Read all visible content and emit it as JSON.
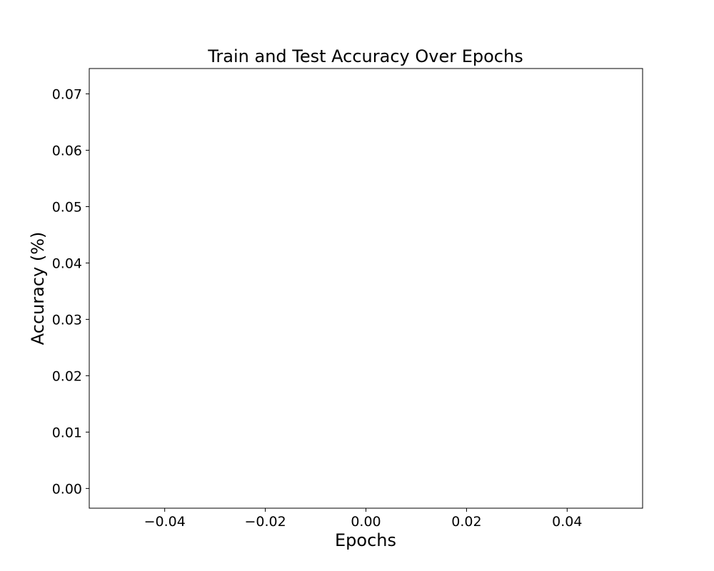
{
  "chart_data": {
    "type": "line",
    "title": "Train and Test Accuracy Over Epochs",
    "xlabel": "Epochs",
    "ylabel": "Accuracy (%)",
    "xlim": [
      -0.055,
      0.055
    ],
    "ylim": [
      -0.0035,
      0.0745
    ],
    "x_ticks": [
      -0.04,
      -0.02,
      0.0,
      0.02,
      0.04
    ],
    "x_tick_labels": [
      "−0.04",
      "−0.02",
      "0.00",
      "0.02",
      "0.04"
    ],
    "y_ticks": [
      0.0,
      0.01,
      0.02,
      0.03,
      0.04,
      0.05,
      0.06,
      0.07
    ],
    "y_tick_labels": [
      "0.00",
      "0.01",
      "0.02",
      "0.03",
      "0.04",
      "0.05",
      "0.06",
      "0.07"
    ],
    "series": [],
    "grid": false,
    "legend": "none"
  }
}
